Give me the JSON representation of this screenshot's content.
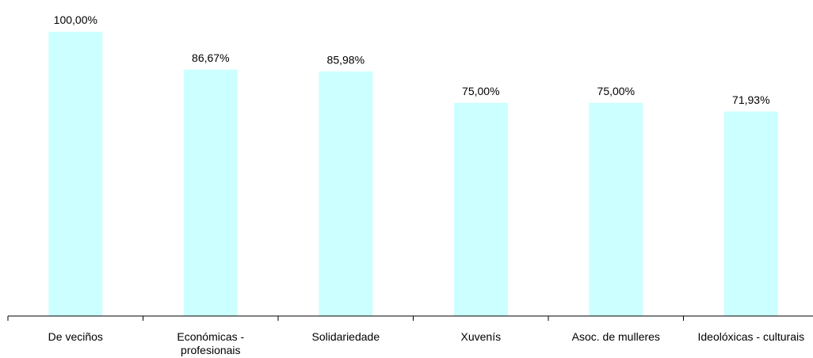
{
  "chart_data": {
    "type": "bar",
    "categories": [
      [
        "De veciños"
      ],
      [
        "Económicas -",
        "profesionais"
      ],
      [
        "Solidariedade"
      ],
      [
        "Xuvenís"
      ],
      [
        "Asoc. de mulleres"
      ],
      [
        "Ideolóxicas - culturais"
      ]
    ],
    "values": [
      100.0,
      86.67,
      85.98,
      75.0,
      75.0,
      71.93
    ],
    "data_labels": [
      "100,00%",
      "86,67%",
      "85,98%",
      "75,00%",
      "75,00%",
      "71,93%"
    ],
    "ylim": [
      0,
      100
    ],
    "grid": false,
    "legend": "none",
    "bar_color": "#ccffff",
    "axis_color": "#000000"
  }
}
